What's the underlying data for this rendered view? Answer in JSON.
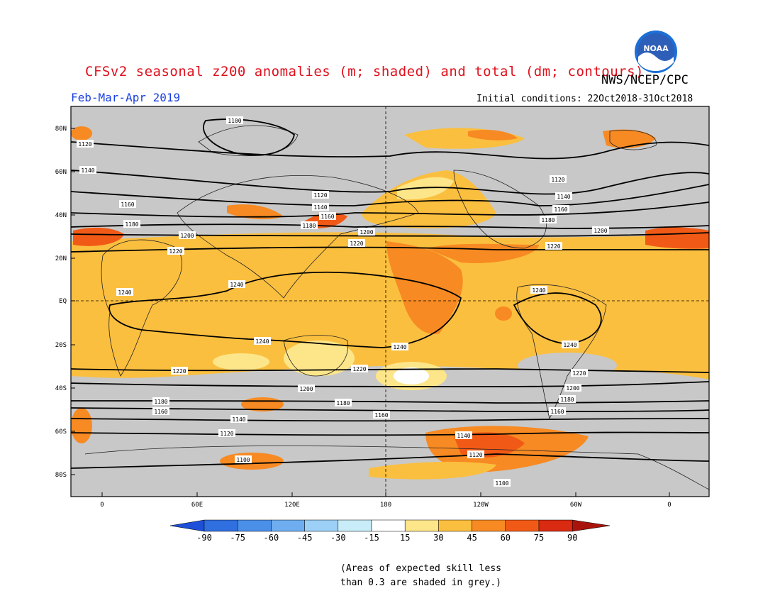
{
  "header": {
    "title": "CFSv2 seasonal z200 anomalies (m; shaded) and total (dm; contours)",
    "org": "NWS/NCEP/CPC",
    "season": "Feb-Mar-Apr 2019",
    "initial_conditions": "Initial conditions: 22Oct2018-31Oct2018",
    "logo_text": "NOAA"
  },
  "map": {
    "lat_labels": [
      "80N",
      "60N",
      "40N",
      "20N",
      "EQ",
      "20S",
      "40S",
      "60S",
      "80S"
    ],
    "lon_labels": [
      "0",
      "60E",
      "120E",
      "180",
      "120W",
      "60W",
      "0"
    ],
    "colors": {
      "grey": "#c8c8c8",
      "c15_30": "#fde68a",
      "c30_45": "#fbbf3f",
      "c45_60": "#f78a22",
      "c60_75": "#f15a16",
      "c75_90": "#d92a12",
      "white": "#ffffff"
    },
    "contours": [
      {
        "value": "1100"
      },
      {
        "value": "1120"
      },
      {
        "value": "1140"
      },
      {
        "value": "1160"
      },
      {
        "value": "1180"
      },
      {
        "value": "1200"
      },
      {
        "value": "1220"
      },
      {
        "value": "1240"
      }
    ]
  },
  "colorbar": {
    "ticks": [
      "-90",
      "-75",
      "-60",
      "-45",
      "-30",
      "-15",
      "15",
      "30",
      "45",
      "60",
      "75",
      "90"
    ],
    "colors": [
      "#1d4fd8",
      "#2f6fe0",
      "#4a8fe8",
      "#6eaef0",
      "#9cd0f6",
      "#c8ecf8",
      "#ffffff",
      "#fde68a",
      "#fbbf3f",
      "#f78a22",
      "#f15a16",
      "#d92a12",
      "#a8140c"
    ]
  },
  "note": "(Areas of expected skill less than 0.3 are shaded in grey.)"
}
